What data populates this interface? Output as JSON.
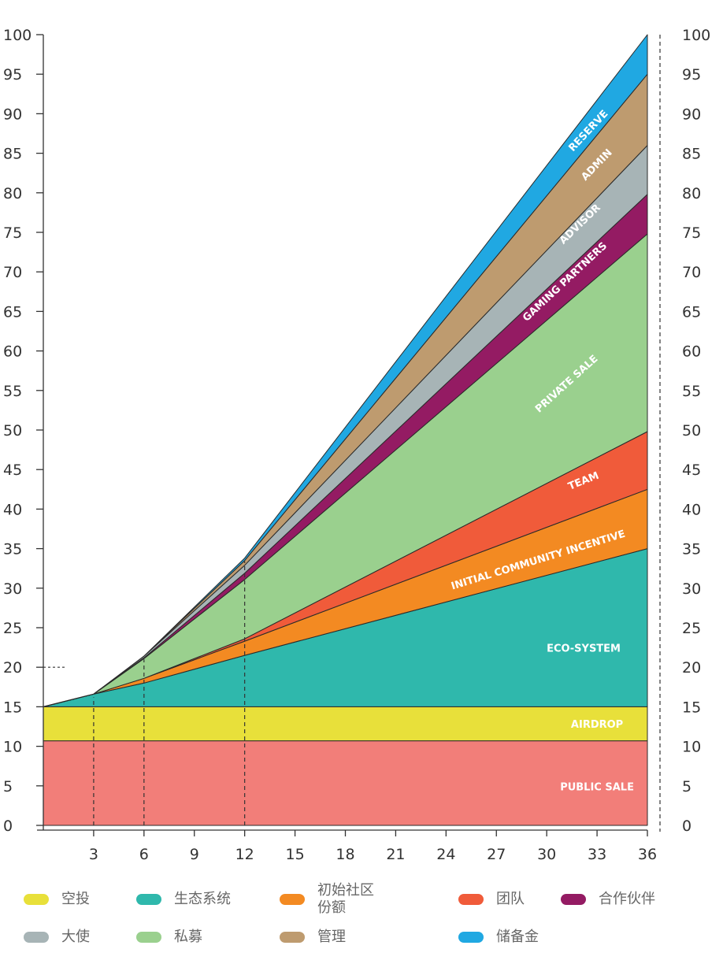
{
  "chart_data": {
    "type": "area",
    "stacked": true,
    "x": [
      0,
      3,
      6,
      12,
      36
    ],
    "xticks": [
      3,
      6,
      9,
      12,
      15,
      18,
      21,
      24,
      27,
      30,
      33,
      36
    ],
    "yticks": [
      0,
      5,
      10,
      15,
      20,
      25,
      30,
      35,
      40,
      45,
      50,
      55,
      60,
      65,
      70,
      75,
      80,
      85,
      90,
      95,
      100
    ],
    "xlim": [
      0,
      36
    ],
    "ylim": [
      0,
      100
    ],
    "y_axes": "left-and-right",
    "reference_lines": {
      "vertical_at_x": [
        3,
        6,
        12
      ],
      "horizontal_at_y": 20,
      "right_dashed_border": true
    },
    "series": [
      {
        "name": "PUBLIC SALE",
        "legend": "",
        "color": "#f27e79",
        "values": [
          10.7,
          10.7,
          10.7,
          10.7,
          10.7
        ]
      },
      {
        "name": "AIRDROP",
        "legend": "空投",
        "color": "#e8e03a",
        "values": [
          4.3,
          4.3,
          4.3,
          4.3,
          4.3
        ]
      },
      {
        "name": "ECO-SYSTEM",
        "legend": "生态系统",
        "color": "#2fb8ac",
        "values": [
          0,
          1.6,
          3.0,
          6.5,
          20.0
        ]
      },
      {
        "name": "INITIAL COMMUNITY INCENTIVE",
        "legend": "初始社区\n份额",
        "color": "#f38a22",
        "values": [
          0,
          0,
          0.6,
          1.8,
          7.5
        ]
      },
      {
        "name": "TEAM",
        "legend": "团队",
        "color": "#f05b3a",
        "values": [
          0,
          0,
          0,
          0.3,
          7.3
        ]
      },
      {
        "name": "PRIVATE SALE",
        "legend": "私募",
        "color": "#9ad08e",
        "values": [
          0,
          0,
          2.5,
          7.5,
          25.0
        ]
      },
      {
        "name": "GAMING PARTNERS",
        "legend": "合作伙伴",
        "color": "#941b63",
        "values": [
          0,
          0,
          0.1,
          0.8,
          5.0
        ]
      },
      {
        "name": "ADVISOR",
        "legend": "大使",
        "color": "#a7b4b6",
        "values": [
          0,
          0,
          0.2,
          1.0,
          6.2
        ]
      },
      {
        "name": "ADMIN",
        "legend": "管理",
        "color": "#be9b6f",
        "values": [
          0,
          0,
          0,
          0.6,
          9.0
        ]
      },
      {
        "name": "RESERVE",
        "legend": "储备金",
        "color": "#20a8e2",
        "values": [
          0,
          0,
          0,
          0.3,
          5.0
        ]
      }
    ],
    "band_labels": [
      {
        "series": "PUBLIC SALE",
        "text": "PUBLIC SALE",
        "x": 33,
        "y": 4.8,
        "angle": 0
      },
      {
        "series": "AIRDROP",
        "text": "AIRDROP",
        "x": 33,
        "y": 12.7,
        "angle": 0
      },
      {
        "series": "ECO-SYSTEM",
        "text": "ECO-SYSTEM",
        "x": 32.2,
        "y": 22.3,
        "angle": 0
      },
      {
        "series": "INITIAL COMMUNITY INCENTIVE",
        "text": "INITIAL COMMUNITY INCENTIVE",
        "x": 29.5,
        "y": 33.5,
        "angle": -17
      },
      {
        "series": "TEAM",
        "text": "TEAM",
        "x": 32.2,
        "y": 43.5,
        "angle": -22
      },
      {
        "series": "PRIVATE SALE",
        "text": "PRIVATE SALE",
        "x": 31.2,
        "y": 55.8,
        "angle": -42
      },
      {
        "series": "GAMING PARTNERS",
        "text": "GAMING PARTNERS",
        "x": 31.1,
        "y": 68.7,
        "angle": -43
      },
      {
        "series": "ADVISOR",
        "text": "ADVISOR",
        "x": 32.0,
        "y": 76.0,
        "angle": -44
      },
      {
        "series": "ADMIN",
        "text": "ADMIN",
        "x": 33.0,
        "y": 83.5,
        "angle": -46
      },
      {
        "series": "RESERVE",
        "text": "RESERVE",
        "x": 32.5,
        "y": 87.8,
        "angle": -47
      }
    ]
  }
}
